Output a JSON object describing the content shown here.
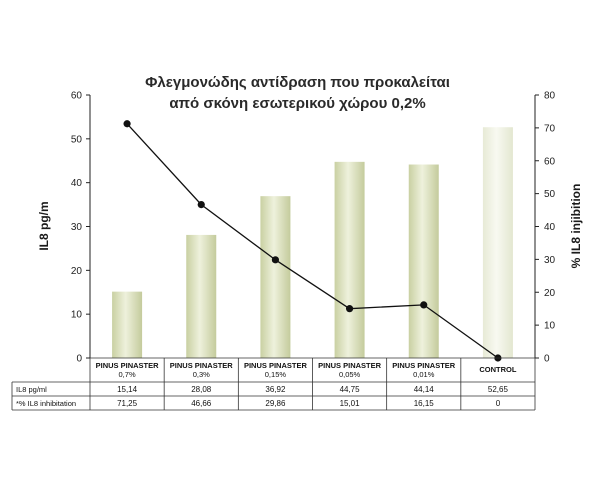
{
  "chart_data": {
    "type": "bar",
    "title_lines": [
      "Φλεγμονώδης αντίδραση που προκαλείται",
      "από σκόνη εσωτερικού χώρου 0,2%"
    ],
    "categories": [
      {
        "name": "PINUS PINASTER",
        "sub": "0,7%"
      },
      {
        "name": "PINUS PINASTER",
        "sub": "0,3%"
      },
      {
        "name": "PINUS PINASTER",
        "sub": "0,15%"
      },
      {
        "name": "PINUS PINASTER",
        "sub": "0,05%"
      },
      {
        "name": "PINUS PINASTER",
        "sub": "0,01%"
      },
      {
        "name": "CONTROL",
        "sub": ""
      }
    ],
    "ylabel_left": "IL8 pg/m",
    "ylabel_right": "% IL8 injibition",
    "ylim_left": [
      0,
      60
    ],
    "yticks_left": [
      0,
      10,
      20,
      30,
      40,
      50,
      60
    ],
    "ylim_right": [
      0,
      80
    ],
    "yticks_right": [
      0,
      10,
      20,
      30,
      40,
      50,
      60,
      70,
      80
    ],
    "series": [
      {
        "name": "IL8 pg/ml",
        "kind": "bar",
        "axis": "left",
        "values": [
          15.14,
          28.08,
          36.92,
          44.75,
          44.14,
          52.65
        ],
        "labels": [
          "15,14",
          "28,08",
          "36,92",
          "44,75",
          "44,14",
          "52,65"
        ]
      },
      {
        "name": "*% IL8 inhibitation",
        "kind": "line",
        "axis": "right",
        "values": [
          71.25,
          46.66,
          29.86,
          15.01,
          16.15,
          0
        ],
        "labels": [
          "71,25",
          "46,66",
          "29,86",
          "15,01",
          "16,15",
          "0"
        ]
      }
    ],
    "colors": {
      "bar": "#d6dcb6",
      "bar_control": "#eef0e0",
      "line": "#111111",
      "axis": "#222222"
    },
    "grid": false,
    "legend": "table-below"
  }
}
